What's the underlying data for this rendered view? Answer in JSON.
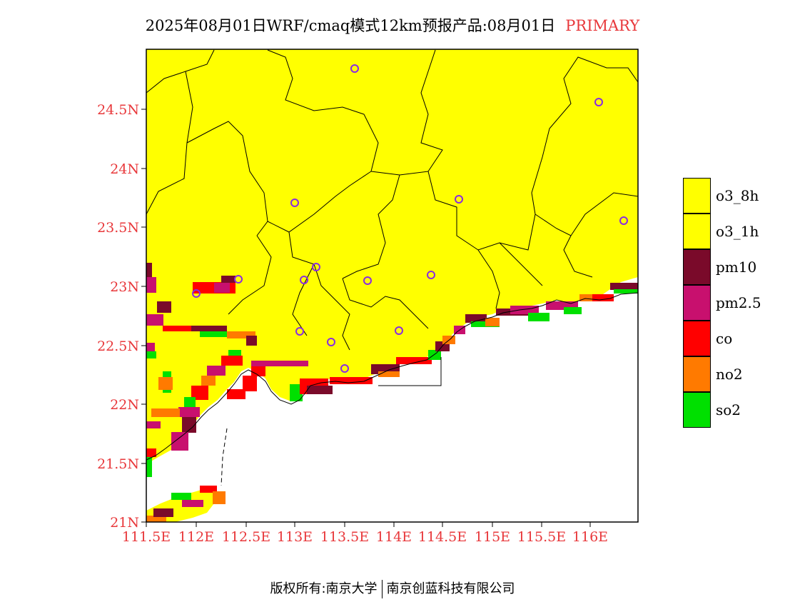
{
  "title": {
    "main": "2025年08月01日WRF/cmaq模式12km预报产品:08月01日",
    "tag": "PRIMARY"
  },
  "footer": {
    "left": "版权所有:南京大学",
    "right": "南京创蓝科技有限公司"
  },
  "axes": {
    "lat_labels": [
      "24.5N",
      "24N",
      "23.5N",
      "23N",
      "22.5N",
      "22N",
      "21.5N",
      "21N"
    ],
    "lon_labels": [
      "111.5E",
      "112E",
      "112.5E",
      "113E",
      "113.5E",
      "114E",
      "114.5E",
      "115E",
      "115.5E",
      "116E"
    ],
    "label_color": "#e8383b"
  },
  "legend": [
    {
      "label": "o3_8h",
      "color": "#ffff00"
    },
    {
      "label": "o3_1h",
      "color": "#ffff00"
    },
    {
      "label": "pm10",
      "color": "#7a0a2a"
    },
    {
      "label": "pm2.5",
      "color": "#c8106e"
    },
    {
      "label": "co",
      "color": "#ff0000"
    },
    {
      "label": "no2",
      "color": "#ff7a00"
    },
    {
      "label": "so2",
      "color": "#00e000"
    }
  ],
  "colors": {
    "land": "#ffff00",
    "sea": "#ffffff",
    "boundary": "#000000",
    "city_marker": "#8a2be2"
  }
}
